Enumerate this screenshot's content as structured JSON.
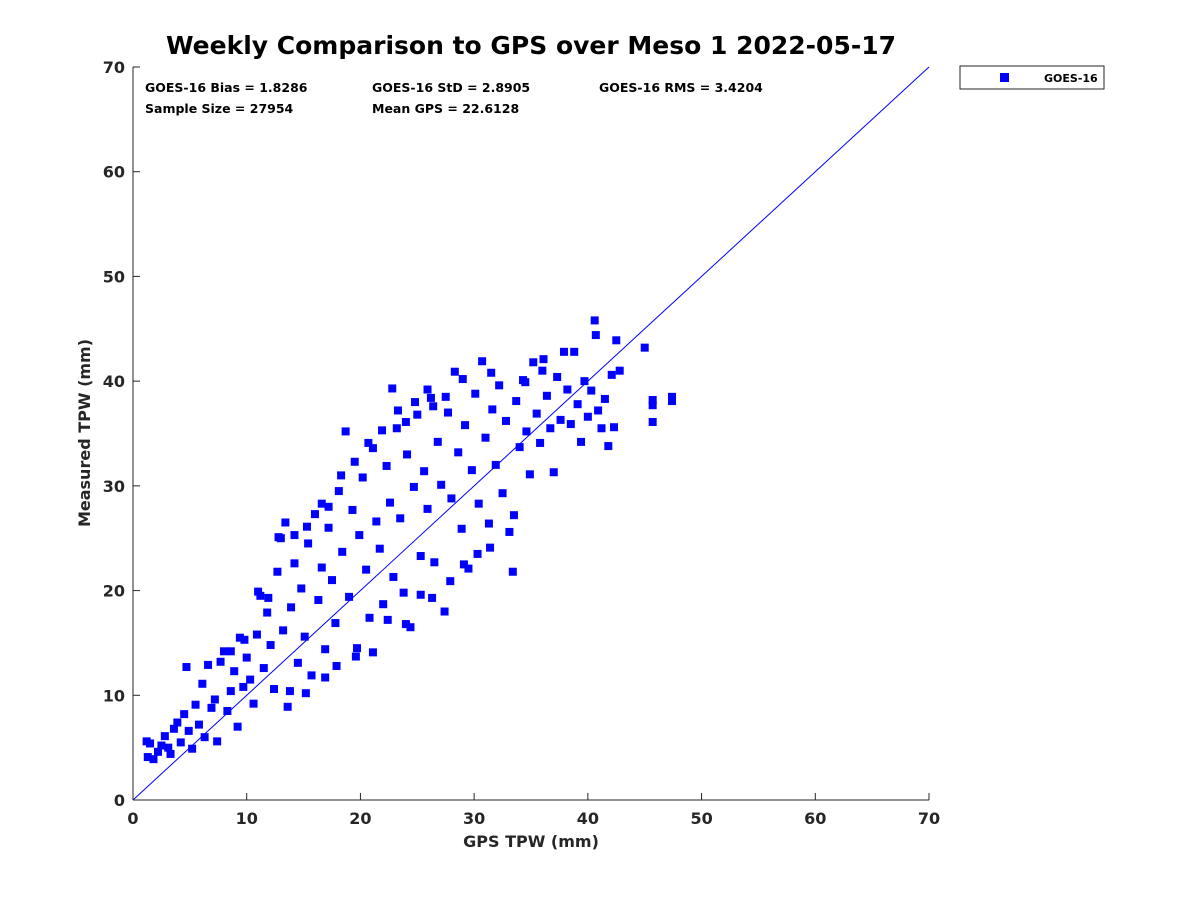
{
  "chart_data": {
    "type": "scatter",
    "title": "Weekly Comparison to GPS over Meso 1 2022-05-17",
    "xlabel": "GPS TPW (mm)",
    "ylabel": "Measured TPW (mm)",
    "xlim": [
      0,
      70
    ],
    "ylim": [
      0,
      70
    ],
    "xticks": [
      "0",
      "10",
      "20",
      "30",
      "40",
      "50",
      "60",
      "70"
    ],
    "yticks": [
      "0",
      "10",
      "20",
      "30",
      "40",
      "50",
      "60",
      "70"
    ],
    "grid": false,
    "legend_position": "outside-top-right",
    "marker_color": "#0000ff",
    "reference_line": {
      "type": "1:1",
      "from": [
        0,
        0
      ],
      "to": [
        70,
        70
      ],
      "color": "#0000ff"
    },
    "stats": [
      {
        "label": "GOES-16 Bias = 1.8286"
      },
      {
        "label": "GOES-16 StD = 2.8905"
      },
      {
        "label": "GOES-16 RMS = 3.4204"
      },
      {
        "label": "Sample Size = 27954"
      },
      {
        "label": "Mean GPS = 22.6128"
      }
    ],
    "series": [
      {
        "name": "GOES-16",
        "points": [
          [
            1.2,
            5.6
          ],
          [
            1.5,
            5.4
          ],
          [
            1.3,
            4.1
          ],
          [
            1.8,
            3.9
          ],
          [
            2.2,
            4.6
          ],
          [
            2.5,
            5.2
          ],
          [
            2.8,
            6.1
          ],
          [
            3.1,
            5.0
          ],
          [
            3.3,
            4.4
          ],
          [
            3.6,
            6.8
          ],
          [
            3.9,
            7.4
          ],
          [
            4.2,
            5.5
          ],
          [
            4.5,
            8.2
          ],
          [
            4.7,
            12.7
          ],
          [
            4.9,
            6.6
          ],
          [
            5.2,
            4.9
          ],
          [
            5.5,
            9.1
          ],
          [
            5.8,
            7.2
          ],
          [
            6.1,
            11.1
          ],
          [
            6.3,
            6.0
          ],
          [
            6.6,
            12.9
          ],
          [
            6.9,
            8.8
          ],
          [
            7.2,
            9.6
          ],
          [
            7.4,
            5.6
          ],
          [
            7.7,
            13.2
          ],
          [
            8.0,
            14.2
          ],
          [
            8.3,
            8.5
          ],
          [
            8.6,
            10.4
          ],
          [
            8.9,
            12.3
          ],
          [
            9.2,
            7.0
          ],
          [
            9.4,
            15.5
          ],
          [
            9.7,
            10.8
          ],
          [
            10.0,
            13.6
          ],
          [
            10.3,
            11.5
          ],
          [
            10.6,
            9.2
          ],
          [
            10.9,
            15.8
          ],
          [
            11.2,
            19.5
          ],
          [
            11.5,
            12.6
          ],
          [
            11.8,
            17.9
          ],
          [
            12.1,
            14.8
          ],
          [
            12.4,
            10.6
          ],
          [
            12.7,
            21.8
          ],
          [
            13.0,
            25.0
          ],
          [
            13.2,
            16.2
          ],
          [
            13.4,
            26.5
          ],
          [
            13.6,
            8.9
          ],
          [
            13.9,
            18.4
          ],
          [
            14.2,
            22.6
          ],
          [
            14.5,
            13.1
          ],
          [
            14.8,
            20.2
          ],
          [
            15.1,
            15.6
          ],
          [
            15.4,
            24.5
          ],
          [
            15.7,
            11.9
          ],
          [
            16.0,
            27.3
          ],
          [
            16.3,
            19.1
          ],
          [
            16.6,
            22.2
          ],
          [
            16.9,
            14.4
          ],
          [
            17.2,
            26.0
          ],
          [
            17.5,
            21.0
          ],
          [
            17.8,
            16.9
          ],
          [
            18.1,
            29.5
          ],
          [
            18.4,
            23.7
          ],
          [
            18.7,
            35.2
          ],
          [
            19.0,
            19.4
          ],
          [
            19.3,
            27.7
          ],
          [
            19.6,
            13.7
          ],
          [
            19.9,
            25.3
          ],
          [
            20.2,
            30.8
          ],
          [
            20.5,
            22.0
          ],
          [
            20.8,
            17.4
          ],
          [
            21.1,
            33.6
          ],
          [
            21.4,
            26.6
          ],
          [
            21.7,
            24.0
          ],
          [
            22.0,
            18.7
          ],
          [
            22.3,
            31.9
          ],
          [
            22.6,
            28.4
          ],
          [
            22.9,
            21.3
          ],
          [
            23.2,
            35.5
          ],
          [
            23.5,
            26.9
          ],
          [
            23.8,
            19.8
          ],
          [
            24.1,
            33.0
          ],
          [
            24.4,
            16.5
          ],
          [
            24.7,
            29.9
          ],
          [
            25.0,
            36.8
          ],
          [
            25.3,
            23.3
          ],
          [
            25.6,
            31.4
          ],
          [
            25.9,
            27.8
          ],
          [
            26.2,
            38.4
          ],
          [
            26.5,
            22.7
          ],
          [
            26.8,
            34.2
          ],
          [
            27.1,
            30.1
          ],
          [
            27.4,
            18.0
          ],
          [
            27.7,
            37.0
          ],
          [
            28.0,
            28.8
          ],
          [
            28.3,
            40.9
          ],
          [
            28.6,
            33.2
          ],
          [
            28.9,
            25.9
          ],
          [
            29.2,
            35.8
          ],
          [
            29.5,
            22.1
          ],
          [
            29.8,
            31.5
          ],
          [
            30.1,
            38.8
          ],
          [
            30.4,
            28.3
          ],
          [
            30.7,
            41.9
          ],
          [
            31.0,
            34.6
          ],
          [
            31.3,
            26.4
          ],
          [
            31.6,
            37.3
          ],
          [
            31.9,
            32.0
          ],
          [
            32.2,
            39.6
          ],
          [
            32.5,
            29.3
          ],
          [
            32.8,
            36.2
          ],
          [
            33.1,
            25.6
          ],
          [
            33.4,
            21.8
          ],
          [
            33.7,
            38.1
          ],
          [
            34.0,
            33.7
          ],
          [
            34.3,
            40.1
          ],
          [
            34.6,
            35.2
          ],
          [
            34.9,
            31.1
          ],
          [
            35.2,
            41.8
          ],
          [
            35.5,
            36.9
          ],
          [
            35.8,
            34.1
          ],
          [
            36.1,
            42.1
          ],
          [
            36.4,
            38.6
          ],
          [
            36.7,
            35.5
          ],
          [
            37.0,
            31.3
          ],
          [
            37.3,
            40.4
          ],
          [
            37.6,
            36.3
          ],
          [
            37.9,
            42.8
          ],
          [
            38.2,
            39.2
          ],
          [
            38.5,
            35.9
          ],
          [
            38.8,
            42.8
          ],
          [
            39.1,
            37.8
          ],
          [
            39.4,
            34.2
          ],
          [
            39.7,
            40.0
          ],
          [
            40.0,
            36.6
          ],
          [
            40.3,
            39.1
          ],
          [
            40.6,
            45.8
          ],
          [
            40.7,
            44.4
          ],
          [
            40.9,
            37.2
          ],
          [
            41.2,
            35.5
          ],
          [
            41.5,
            38.3
          ],
          [
            41.8,
            33.8
          ],
          [
            42.1,
            40.6
          ],
          [
            42.3,
            35.6
          ],
          [
            42.5,
            43.9
          ],
          [
            42.8,
            41.0
          ],
          [
            45.0,
            43.2
          ],
          [
            45.7,
            38.2
          ],
          [
            45.7,
            36.1
          ],
          [
            45.7,
            37.7
          ],
          [
            47.4,
            38.5
          ],
          [
            47.4,
            38.1
          ],
          [
            22.8,
            39.3
          ],
          [
            24.0,
            36.1
          ],
          [
            26.4,
            37.6
          ],
          [
            27.5,
            38.5
          ],
          [
            29.0,
            40.2
          ],
          [
            31.5,
            40.8
          ],
          [
            34.5,
            39.9
          ],
          [
            36.0,
            41.0
          ],
          [
            13.8,
            10.4
          ],
          [
            15.2,
            10.2
          ],
          [
            16.9,
            11.7
          ],
          [
            17.9,
            12.8
          ],
          [
            19.7,
            14.5
          ],
          [
            21.1,
            14.1
          ],
          [
            22.4,
            17.2
          ],
          [
            24.0,
            16.8
          ],
          [
            25.3,
            19.6
          ],
          [
            26.3,
            19.3
          ],
          [
            27.9,
            20.9
          ],
          [
            29.1,
            22.5
          ],
          [
            30.3,
            23.5
          ],
          [
            31.4,
            24.1
          ],
          [
            33.5,
            27.2
          ],
          [
            8.6,
            14.2
          ],
          [
            9.8,
            15.3
          ],
          [
            11.0,
            19.9
          ],
          [
            11.9,
            19.3
          ],
          [
            12.8,
            25.1
          ],
          [
            14.2,
            25.3
          ],
          [
            15.3,
            26.1
          ],
          [
            16.6,
            28.3
          ],
          [
            17.2,
            28.0
          ],
          [
            18.3,
            31.0
          ],
          [
            19.5,
            32.3
          ],
          [
            20.7,
            34.1
          ],
          [
            21.9,
            35.3
          ],
          [
            23.3,
            37.2
          ],
          [
            24.8,
            38.0
          ],
          [
            25.9,
            39.2
          ]
        ]
      }
    ]
  }
}
